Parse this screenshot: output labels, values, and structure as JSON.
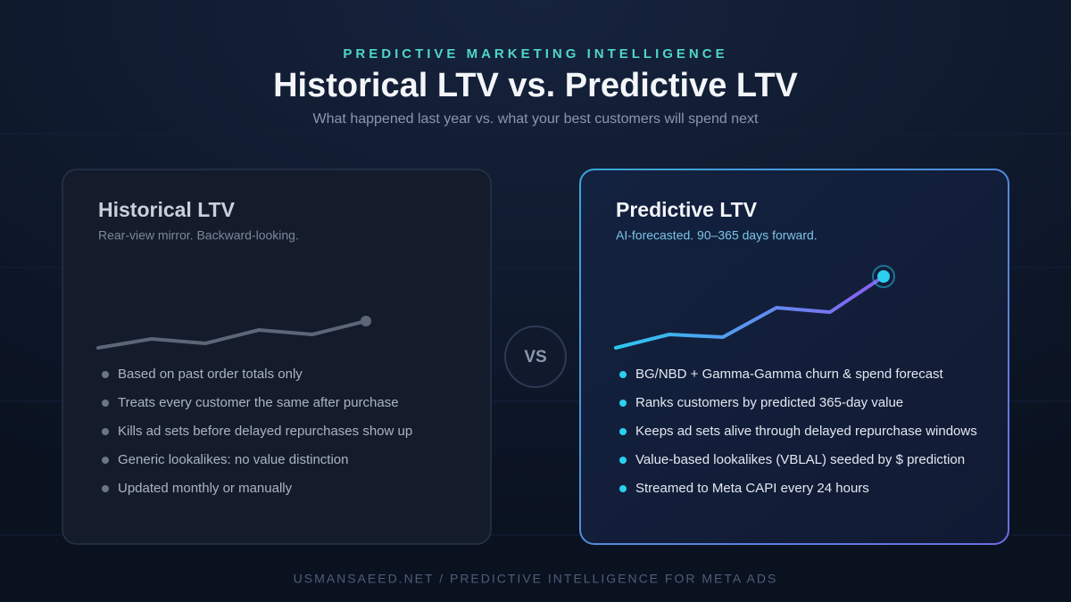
{
  "header": {
    "eyebrow": "PREDICTIVE MARKETING INTELLIGENCE",
    "title": "Historical LTV vs. Predictive LTV",
    "subtitle": "What happened last year vs. what your best customers will spend next"
  },
  "cards": [
    {
      "title": "Historical LTV",
      "subtitle": "Rear-view mirror. Backward-looking.",
      "bullets": [
        "Based on past order totals only",
        "Treats every customer the same after purchase",
        "Kills ad sets before delayed repurchases show up",
        "Generic lookalikes: no value distinction",
        "Updated monthly or manually"
      ]
    },
    {
      "title": "Predictive LTV",
      "subtitle": "AI-forecasted. 90–365 days forward.",
      "bullets": [
        "BG/NBD + Gamma-Gamma churn & spend forecast",
        "Ranks customers by predicted 365-day value",
        "Keeps ad sets alive through delayed repurchase windows",
        "Value-based lookalikes (VBLAL) seeded by $ prediction",
        "Streamed to Meta CAPI every 24 hours"
      ]
    }
  ],
  "vs": "VS",
  "footer": "USMANSAEED.NET / PREDICTIVE INTELLIGENCE FOR META ADS"
}
